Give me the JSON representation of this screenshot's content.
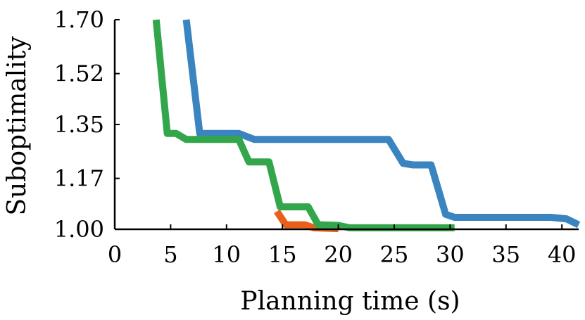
{
  "chart_data": {
    "type": "line",
    "title": "",
    "xlabel": "Planning time (s)",
    "ylabel": "Suboptimality",
    "xlim": [
      0,
      41.5
    ],
    "ylim": [
      1.0,
      1.7
    ],
    "xticks": [
      0,
      5,
      10,
      15,
      20,
      25,
      30,
      35,
      40
    ],
    "yticks": [
      1.0,
      1.17,
      1.35,
      1.52,
      1.7
    ],
    "xtick_labels": [
      "0",
      "5",
      "10",
      "15",
      "20",
      "25",
      "30",
      "35",
      "40"
    ],
    "ytick_labels": [
      "1.00",
      "1.17",
      "1.35",
      "1.52",
      "1.70"
    ],
    "grid": false,
    "series": [
      {
        "color": "#3a84c0",
        "points": [
          [
            6.4,
            1.7
          ],
          [
            7.6,
            1.32
          ],
          [
            11.1,
            1.32
          ],
          [
            12.5,
            1.3
          ],
          [
            24.5,
            1.3
          ],
          [
            25.8,
            1.22
          ],
          [
            26.7,
            1.215
          ],
          [
            28.3,
            1.215
          ],
          [
            29.6,
            1.05
          ],
          [
            30.4,
            1.04
          ],
          [
            39.0,
            1.04
          ],
          [
            40.4,
            1.035
          ],
          [
            41.5,
            1.015
          ]
        ]
      },
      {
        "color": "#e8601c",
        "points": [
          [
            14.5,
            1.06
          ],
          [
            15.3,
            1.015
          ],
          [
            17.0,
            1.015
          ],
          [
            17.8,
            1.005
          ],
          [
            20.0,
            1.002
          ]
        ]
      },
      {
        "color": "#33a64c",
        "points": [
          [
            3.7,
            1.7
          ],
          [
            4.7,
            1.32
          ],
          [
            5.5,
            1.32
          ],
          [
            6.4,
            1.3
          ],
          [
            11.1,
            1.3
          ],
          [
            12.0,
            1.225
          ],
          [
            13.8,
            1.225
          ],
          [
            14.8,
            1.075
          ],
          [
            17.3,
            1.075
          ],
          [
            18.2,
            1.015
          ],
          [
            20.0,
            1.013
          ],
          [
            21.0,
            1.005
          ],
          [
            30.4,
            1.005
          ]
        ]
      }
    ]
  }
}
